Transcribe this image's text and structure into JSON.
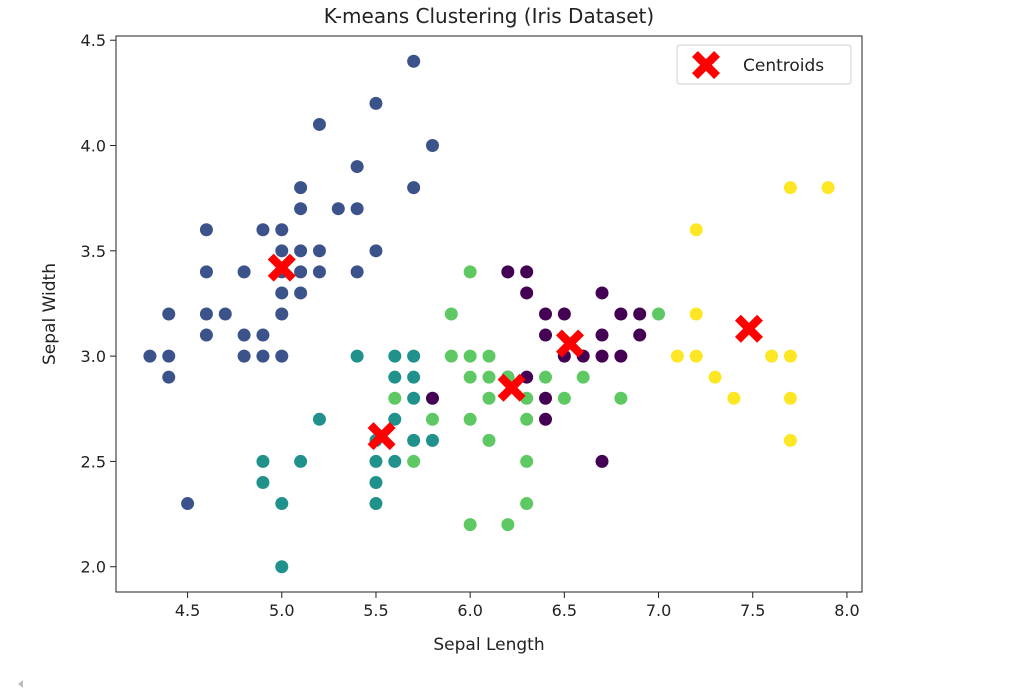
{
  "chart_data": {
    "type": "scatter",
    "title": "K-means Clustering (Iris Dataset)",
    "xlabel": "Sepal Length",
    "ylabel": "Sepal Width",
    "xlim": [
      4.12,
      8.08
    ],
    "ylim": [
      1.88,
      4.52
    ],
    "xticks": [
      "4.5",
      "5.0",
      "5.5",
      "6.0",
      "6.5",
      "7.0",
      "7.5",
      "8.0"
    ],
    "yticks": [
      "2.0",
      "2.5",
      "3.0",
      "3.5",
      "4.0",
      "4.5"
    ],
    "grid": false,
    "legend": {
      "placement": "top-right",
      "entries": [
        "Centroids"
      ]
    },
    "colors": {
      "cluster_0": "#440154",
      "cluster_1": "#3b528b",
      "cluster_2": "#21918c",
      "cluster_3": "#5ec962",
      "cluster_4": "#fde725",
      "centroid": "#ff0000"
    },
    "series": [
      {
        "cluster": 0,
        "points": [
          [
            6.2,
            3.4
          ],
          [
            6.3,
            3.4
          ],
          [
            6.3,
            3.3
          ],
          [
            6.4,
            3.2
          ],
          [
            6.5,
            3.2
          ],
          [
            6.4,
            3.1
          ],
          [
            6.7,
            3.3
          ],
          [
            6.7,
            3.1
          ],
          [
            6.7,
            3.0
          ],
          [
            6.8,
            3.2
          ],
          [
            6.8,
            3.0
          ],
          [
            6.9,
            3.2
          ],
          [
            6.9,
            3.1
          ],
          [
            6.5,
            3.0
          ],
          [
            6.6,
            3.0
          ],
          [
            6.3,
            2.9
          ],
          [
            6.4,
            2.8
          ],
          [
            6.4,
            2.7
          ],
          [
            6.2,
            2.9
          ],
          [
            5.8,
            2.8
          ],
          [
            6.7,
            2.5
          ]
        ]
      },
      {
        "cluster": 1,
        "points": [
          [
            5.7,
            4.4
          ],
          [
            5.5,
            4.2
          ],
          [
            5.2,
            4.1
          ],
          [
            5.8,
            4.0
          ],
          [
            5.4,
            3.9
          ],
          [
            5.7,
            3.8
          ],
          [
            5.1,
            3.8
          ],
          [
            5.1,
            3.7
          ],
          [
            5.3,
            3.7
          ],
          [
            5.4,
            3.7
          ],
          [
            4.6,
            3.6
          ],
          [
            4.9,
            3.6
          ],
          [
            5.0,
            3.6
          ],
          [
            5.0,
            3.5
          ],
          [
            5.1,
            3.5
          ],
          [
            5.2,
            3.5
          ],
          [
            5.5,
            3.5
          ],
          [
            4.6,
            3.4
          ],
          [
            4.8,
            3.4
          ],
          [
            5.0,
            3.4
          ],
          [
            5.1,
            3.4
          ],
          [
            5.2,
            3.4
          ],
          [
            5.4,
            3.4
          ],
          [
            5.0,
            3.3
          ],
          [
            5.1,
            3.3
          ],
          [
            4.4,
            3.2
          ],
          [
            4.6,
            3.2
          ],
          [
            4.7,
            3.2
          ],
          [
            5.0,
            3.2
          ],
          [
            4.6,
            3.1
          ],
          [
            4.8,
            3.1
          ],
          [
            4.9,
            3.1
          ],
          [
            4.3,
            3.0
          ],
          [
            4.4,
            3.0
          ],
          [
            4.8,
            3.0
          ],
          [
            4.9,
            3.0
          ],
          [
            5.0,
            3.0
          ],
          [
            4.4,
            2.9
          ],
          [
            4.5,
            2.3
          ]
        ]
      },
      {
        "cluster": 2,
        "points": [
          [
            5.4,
            3.0
          ],
          [
            5.6,
            3.0
          ],
          [
            5.7,
            3.0
          ],
          [
            5.6,
            2.9
          ],
          [
            5.7,
            2.9
          ],
          [
            5.7,
            2.8
          ],
          [
            5.6,
            2.7
          ],
          [
            5.2,
            2.7
          ],
          [
            5.5,
            2.6
          ],
          [
            5.7,
            2.6
          ],
          [
            5.8,
            2.6
          ],
          [
            4.9,
            2.5
          ],
          [
            5.1,
            2.5
          ],
          [
            5.5,
            2.5
          ],
          [
            5.6,
            2.5
          ],
          [
            4.9,
            2.4
          ],
          [
            5.5,
            2.4
          ],
          [
            5.0,
            2.3
          ],
          [
            5.5,
            2.3
          ],
          [
            5.0,
            2.0
          ]
        ]
      },
      {
        "cluster": 3,
        "points": [
          [
            6.0,
            3.4
          ],
          [
            5.9,
            3.2
          ],
          [
            7.0,
            3.2
          ],
          [
            5.9,
            3.0
          ],
          [
            6.0,
            3.0
          ],
          [
            6.1,
            3.0
          ],
          [
            6.0,
            2.9
          ],
          [
            6.1,
            2.9
          ],
          [
            6.2,
            2.9
          ],
          [
            6.4,
            2.9
          ],
          [
            6.6,
            2.9
          ],
          [
            5.6,
            2.8
          ],
          [
            6.1,
            2.8
          ],
          [
            6.3,
            2.8
          ],
          [
            6.5,
            2.8
          ],
          [
            6.8,
            2.8
          ],
          [
            5.8,
            2.7
          ],
          [
            6.0,
            2.7
          ],
          [
            6.3,
            2.7
          ],
          [
            6.1,
            2.6
          ],
          [
            5.7,
            2.5
          ],
          [
            6.3,
            2.5
          ],
          [
            6.0,
            2.2
          ],
          [
            6.2,
            2.2
          ],
          [
            6.3,
            2.3
          ]
        ]
      },
      {
        "cluster": 4,
        "points": [
          [
            7.7,
            3.8
          ],
          [
            7.9,
            3.8
          ],
          [
            7.2,
            3.6
          ],
          [
            7.2,
            3.2
          ],
          [
            7.1,
            3.0
          ],
          [
            7.2,
            3.0
          ],
          [
            7.6,
            3.0
          ],
          [
            7.7,
            3.0
          ],
          [
            7.3,
            2.9
          ],
          [
            7.4,
            2.8
          ],
          [
            7.7,
            2.8
          ],
          [
            7.7,
            2.6
          ]
        ]
      }
    ],
    "centroids": [
      [
        5.0,
        3.42
      ],
      [
        5.53,
        2.62
      ],
      [
        6.22,
        2.85
      ],
      [
        6.53,
        3.06
      ],
      [
        7.48,
        3.13
      ]
    ]
  }
}
